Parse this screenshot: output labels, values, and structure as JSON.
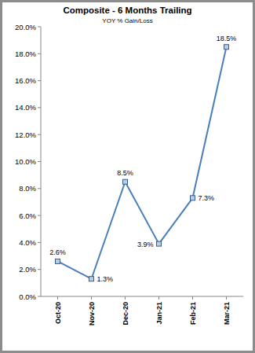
{
  "chart_data": {
    "type": "line",
    "title": "Composite - 6 Months Trailing",
    "subtitle": "YOY % Gain/Loss",
    "categories": [
      "Oct-20",
      "Nov-20",
      "Dec-20",
      "Jan-21",
      "Feb-21",
      "Mar-21"
    ],
    "values": [
      2.6,
      1.3,
      8.5,
      3.9,
      7.3,
      18.5
    ],
    "value_labels": [
      "2.6%",
      "1.3%",
      "8.5%",
      "3.9%",
      "7.3%",
      "18.5%"
    ],
    "color": "#4a7ebb",
    "marker": "square",
    "data_labels": true,
    "grid": false,
    "ylim": [
      0,
      20
    ],
    "yticks": [
      {
        "value": 0,
        "label": "0.0%"
      },
      {
        "value": 2,
        "label": "2.0%"
      },
      {
        "value": 4,
        "label": "4.0%"
      },
      {
        "value": 6,
        "label": "6.0%"
      },
      {
        "value": 8,
        "label": "8.0%"
      },
      {
        "value": 10,
        "label": "10.0%"
      },
      {
        "value": 12,
        "label": "12.0%"
      },
      {
        "value": 14,
        "label": "14.0%"
      },
      {
        "value": 16,
        "label": "16.0%"
      },
      {
        "value": 18,
        "label": "18.0%"
      },
      {
        "value": 20,
        "label": "20.0%"
      }
    ]
  }
}
